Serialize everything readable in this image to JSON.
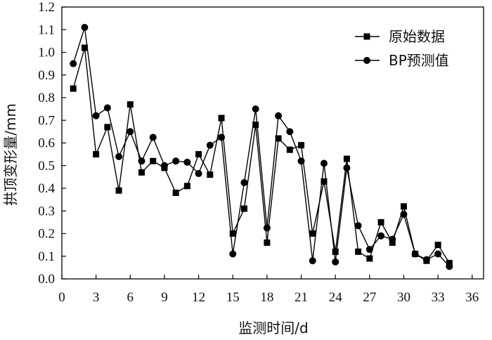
{
  "chart_data": {
    "type": "line",
    "xlabel": "监测时间/d",
    "ylabel": "拱顶变形量/mm",
    "xlim": [
      0,
      37
    ],
    "ylim": [
      0,
      1.2
    ],
    "xticks": [
      "0",
      "3",
      "6",
      "9",
      "12",
      "15",
      "18",
      "21",
      "24",
      "27",
      "30",
      "33",
      "36"
    ],
    "yticks": [
      "0.0",
      "0.1",
      "0.2",
      "0.3",
      "0.4",
      "0.5",
      "0.6",
      "0.7",
      "0.8",
      "0.9",
      "1.0",
      "1.1",
      "1.2"
    ],
    "x": [
      1,
      2,
      3,
      4,
      5,
      6,
      7,
      8,
      9,
      10,
      11,
      12,
      13,
      14,
      15,
      16,
      17,
      18,
      19,
      20,
      21,
      22,
      23,
      24,
      25,
      26,
      27,
      28,
      29,
      30,
      31,
      32,
      33,
      34
    ],
    "series": [
      {
        "name": "原始数据",
        "marker": "square",
        "values": [
          0.84,
          1.02,
          0.55,
          0.67,
          0.39,
          0.77,
          0.47,
          0.52,
          0.49,
          0.38,
          0.41,
          0.55,
          0.46,
          0.71,
          0.2,
          0.31,
          0.68,
          0.16,
          0.62,
          0.57,
          0.59,
          0.2,
          0.43,
          0.12,
          0.53,
          0.12,
          0.09,
          0.25,
          0.16,
          0.32,
          0.11,
          0.08,
          0.15,
          0.07
        ]
      },
      {
        "name": "BP预测值",
        "marker": "circle",
        "values": [
          0.95,
          1.11,
          0.72,
          0.755,
          0.54,
          0.65,
          0.52,
          0.625,
          0.5,
          0.52,
          0.515,
          0.465,
          0.59,
          0.625,
          0.11,
          0.425,
          0.75,
          0.225,
          0.72,
          0.65,
          0.52,
          0.08,
          0.51,
          0.075,
          0.49,
          0.235,
          0.13,
          0.19,
          0.175,
          0.285,
          0.11,
          0.085,
          0.11,
          0.055
        ]
      }
    ],
    "grid": false,
    "legend_position": "top-right"
  }
}
